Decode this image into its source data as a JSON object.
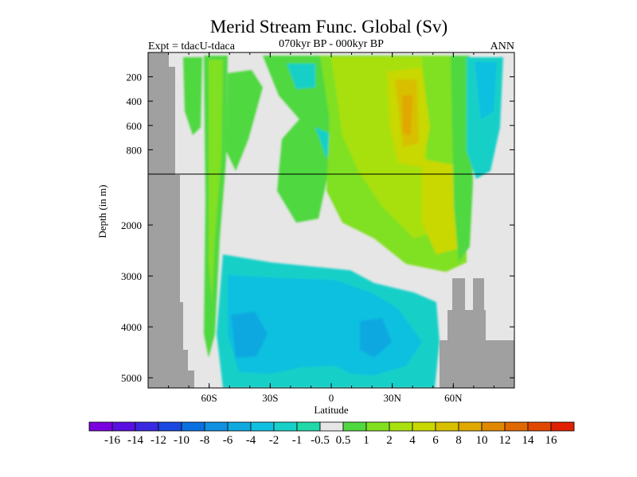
{
  "chart_data": {
    "type": "heatmap",
    "title": "Merid Stream Func. Global (Sv)",
    "subtitle_left": "Expt = tdacU-tdaca",
    "subtitle_center": "070kyr BP - 000kyr BP",
    "subtitle_right": "ANN",
    "xlabel": "Latitude",
    "ylabel": "Depth (in m)",
    "xlim": [
      -90,
      90
    ],
    "x_ticks": [
      {
        "value": -60,
        "label": "60S"
      },
      {
        "value": -30,
        "label": "30S"
      },
      {
        "value": 0,
        "label": "0"
      },
      {
        "value": 30,
        "label": "30N"
      },
      {
        "value": 60,
        "label": "60N"
      }
    ],
    "y_ticks_upper": [
      {
        "value": 200,
        "label": "200"
      },
      {
        "value": 400,
        "label": "400"
      },
      {
        "value": 600,
        "label": "600"
      },
      {
        "value": 800,
        "label": "800"
      }
    ],
    "y_ticks_lower": [
      {
        "value": 2000,
        "label": "2000"
      },
      {
        "value": 3000,
        "label": "3000"
      },
      {
        "value": 4000,
        "label": "4000"
      },
      {
        "value": 5000,
        "label": "5000"
      }
    ],
    "ylim_upper": [
      0,
      1000
    ],
    "ylim_lower": [
      1000,
      5200
    ],
    "colorbar_labels": [
      "-16",
      "-14",
      "-12",
      "-10",
      "-8",
      "-6",
      "-4",
      "-2",
      "-1",
      "-0.5",
      "0.5",
      "1",
      "2",
      "4",
      "6",
      "8",
      "10",
      "12",
      "14",
      "16"
    ],
    "colorbar_colors": [
      "#7a00e0",
      "#5a10e0",
      "#3a28e0",
      "#1a48e0",
      "#0a70e0",
      "#1090e0",
      "#10a8e0",
      "#10c0e0",
      "#18d0c8",
      "#20d8a8",
      "#e6e6e6",
      "#50d840",
      "#80e020",
      "#a8e010",
      "#c8d800",
      "#d8c000",
      "#e0a800",
      "#e08800",
      "#e06800",
      "#e04800",
      "#e02000"
    ],
    "regions": [
      {
        "name": "zero-background",
        "level": 0,
        "lat_range": [
          -90,
          90
        ],
        "depth_range": [
          0,
          5200
        ]
      },
      {
        "name": "southern-ocean-cell",
        "level": 1.5,
        "lat_range": [
          -68,
          -57
        ],
        "depth_range": [
          0,
          4600
        ]
      },
      {
        "name": "upper-tropical-cell",
        "level": 1.5,
        "lat_range": [
          -50,
          12
        ],
        "depth_range": [
          0,
          900
        ]
      },
      {
        "name": "nadw-cell",
        "level": 4,
        "lat_range": [
          -10,
          62
        ],
        "depth_range": [
          0,
          2900
        ]
      },
      {
        "name": "nadw-core",
        "level": 8,
        "lat_range": [
          30,
          38
        ],
        "depth_range": [
          300,
          900
        ]
      },
      {
        "name": "aabw-cell",
        "level": -4,
        "lat_range": [
          -52,
          50
        ],
        "depth_range": [
          3000,
          5200
        ]
      },
      {
        "name": "north-high-latitude-cell",
        "level": -4,
        "lat_range": [
          64,
          80
        ],
        "depth_range": [
          0,
          1000
        ]
      }
    ]
  }
}
